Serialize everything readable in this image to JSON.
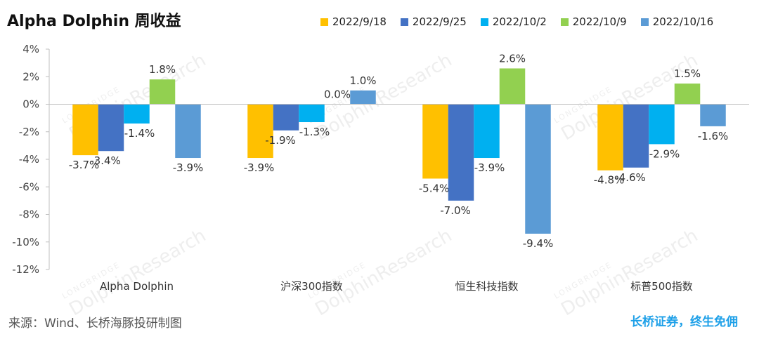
{
  "title": "Alpha Dolphin 周收益",
  "footer": {
    "source": "来源：Wind、长桥海豚投研制图",
    "brand": "长桥证券，终生免佣"
  },
  "watermark": {
    "brand": "LONGBRIDGE",
    "name": "DolphinResearch"
  },
  "chart_data": {
    "type": "bar",
    "title": "Alpha Dolphin 周收益",
    "categories": [
      "Alpha Dolphin",
      "沪深300指数",
      "恒生科技指数",
      "标普500指数"
    ],
    "series": [
      {
        "name": "2022/9/18",
        "color": "#FFC000",
        "values": [
          -3.7,
          -3.9,
          -5.4,
          -4.8
        ],
        "labels": [
          "-3.7%",
          "-3.9%",
          "-5.4%",
          "-4.8%"
        ]
      },
      {
        "name": "2022/9/25",
        "color": "#4472C4",
        "values": [
          -3.4,
          -1.9,
          -7.0,
          -4.6
        ],
        "labels": [
          "-3.4%",
          "-1.9%",
          "-7.0%",
          "-4.6%"
        ]
      },
      {
        "name": "2022/10/2",
        "color": "#00B0F0",
        "values": [
          -1.4,
          -1.3,
          -3.9,
          -2.9
        ],
        "labels": [
          "-1.4%",
          "-1.3%",
          "-3.9%",
          "-2.9%"
        ]
      },
      {
        "name": "2022/10/9",
        "color": "#92D050",
        "values": [
          1.8,
          0.0,
          2.6,
          1.5
        ],
        "labels": [
          "1.8%",
          "0.0%",
          "2.6%",
          "1.5%"
        ]
      },
      {
        "name": "2022/10/16",
        "color": "#5B9BD5",
        "values": [
          -3.9,
          1.0,
          -9.4,
          -1.6
        ],
        "labels": [
          "-3.9%",
          "1.0%",
          "-9.4%",
          "-1.6%"
        ]
      }
    ],
    "ylim": [
      -12,
      4
    ],
    "yticks": [
      4,
      2,
      0,
      -2,
      -4,
      -6,
      -8,
      -10,
      -12
    ],
    "ytick_labels": [
      "4%",
      "2%",
      "0%",
      "-2%",
      "-4%",
      "-6%",
      "-8%",
      "-10%",
      "-12%"
    ],
    "xlabel": "",
    "ylabel": "",
    "grid": false,
    "legend": "top-right"
  }
}
